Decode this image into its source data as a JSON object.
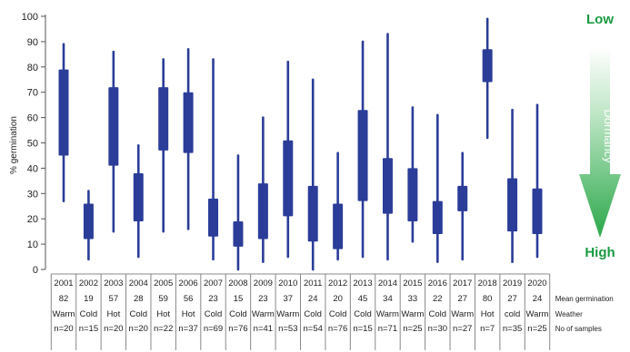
{
  "chart_data": {
    "type": "box",
    "title": "",
    "xlabel": "",
    "ylabel": "% germination",
    "ylim": [
      0,
      100
    ],
    "yticks": [
      0,
      10,
      20,
      30,
      40,
      50,
      60,
      70,
      80,
      90,
      100
    ],
    "grid": false,
    "bar_color": "#2b3d99",
    "categories": [
      "2001",
      "2002",
      "2003",
      "2004",
      "2005",
      "2006",
      "2007",
      "2008",
      "2009",
      "2010",
      "2011",
      "2012",
      "2013",
      "2014",
      "2015",
      "2016",
      "2017",
      "2018",
      "2019",
      "2020"
    ],
    "series": [
      {
        "values": [
          {
            "min": 27,
            "q1": 45,
            "q3": 79,
            "max": 89
          },
          {
            "min": 4,
            "q1": 12,
            "q3": 26,
            "max": 31
          },
          {
            "min": 15,
            "q1": 41,
            "q3": 72,
            "max": 86
          },
          {
            "min": 5,
            "q1": 19,
            "q3": 38,
            "max": 49
          },
          {
            "min": 15,
            "q1": 47,
            "q3": 72,
            "max": 83
          },
          {
            "min": 16,
            "q1": 46,
            "q3": 70,
            "max": 87
          },
          {
            "min": 4,
            "q1": 13,
            "q3": 28,
            "max": 83
          },
          {
            "min": 0,
            "q1": 9,
            "q3": 19,
            "max": 45
          },
          {
            "min": 3,
            "q1": 12,
            "q3": 34,
            "max": 60
          },
          {
            "min": 5,
            "q1": 21,
            "q3": 51,
            "max": 82
          },
          {
            "min": 0,
            "q1": 11,
            "q3": 33,
            "max": 75
          },
          {
            "min": 4,
            "q1": 8,
            "q3": 26,
            "max": 46
          },
          {
            "min": 5,
            "q1": 27,
            "q3": 63,
            "max": 90
          },
          {
            "min": 4,
            "q1": 22,
            "q3": 44,
            "max": 93
          },
          {
            "min": 11,
            "q1": 19,
            "q3": 40,
            "max": 64
          },
          {
            "min": 3,
            "q1": 14,
            "q3": 27,
            "max": 61
          },
          {
            "min": 4,
            "q1": 23,
            "q3": 33,
            "max": 46
          },
          {
            "min": 52,
            "q1": 74,
            "q3": 87,
            "max": 99
          },
          {
            "min": 3,
            "q1": 15,
            "q3": 36,
            "max": 63
          },
          {
            "min": 5,
            "q1": 14,
            "q3": 32,
            "max": 65
          }
        ]
      }
    ],
    "table": {
      "row_labels": [
        "Mean germination",
        "Weather",
        "No of samples"
      ],
      "rows": [
        [
          "82",
          "19",
          "57",
          "28",
          "59",
          "56",
          "23",
          "15",
          "23",
          "37",
          "24",
          "20",
          "45",
          "34",
          "33",
          "22",
          "27",
          "80",
          "27",
          "24"
        ],
        [
          "Warm",
          "Cold",
          "Hot",
          "Cold",
          "Hot",
          "Hot",
          "Cold",
          "Cold",
          "Warm",
          "Warm",
          "Cold",
          "Cold",
          "Cold",
          "Warm",
          "Warm",
          "Cold",
          "Warm",
          "Hot",
          "cold",
          "Warm"
        ],
        [
          "n=20",
          "n=15",
          "n=20",
          "n=20",
          "n=22",
          "n=37",
          "n=69",
          "n=76",
          "n=41",
          "n=53",
          "n=54",
          "n=76",
          "n=15",
          "n=71",
          "n=25",
          "n=30",
          "n=27",
          "n=7",
          "n=35",
          "n=25"
        ]
      ]
    },
    "annotations": {
      "top": "Low",
      "bottom": "High",
      "arrow_label": "Dormancy",
      "arrow_color": "#2aa84a"
    }
  }
}
